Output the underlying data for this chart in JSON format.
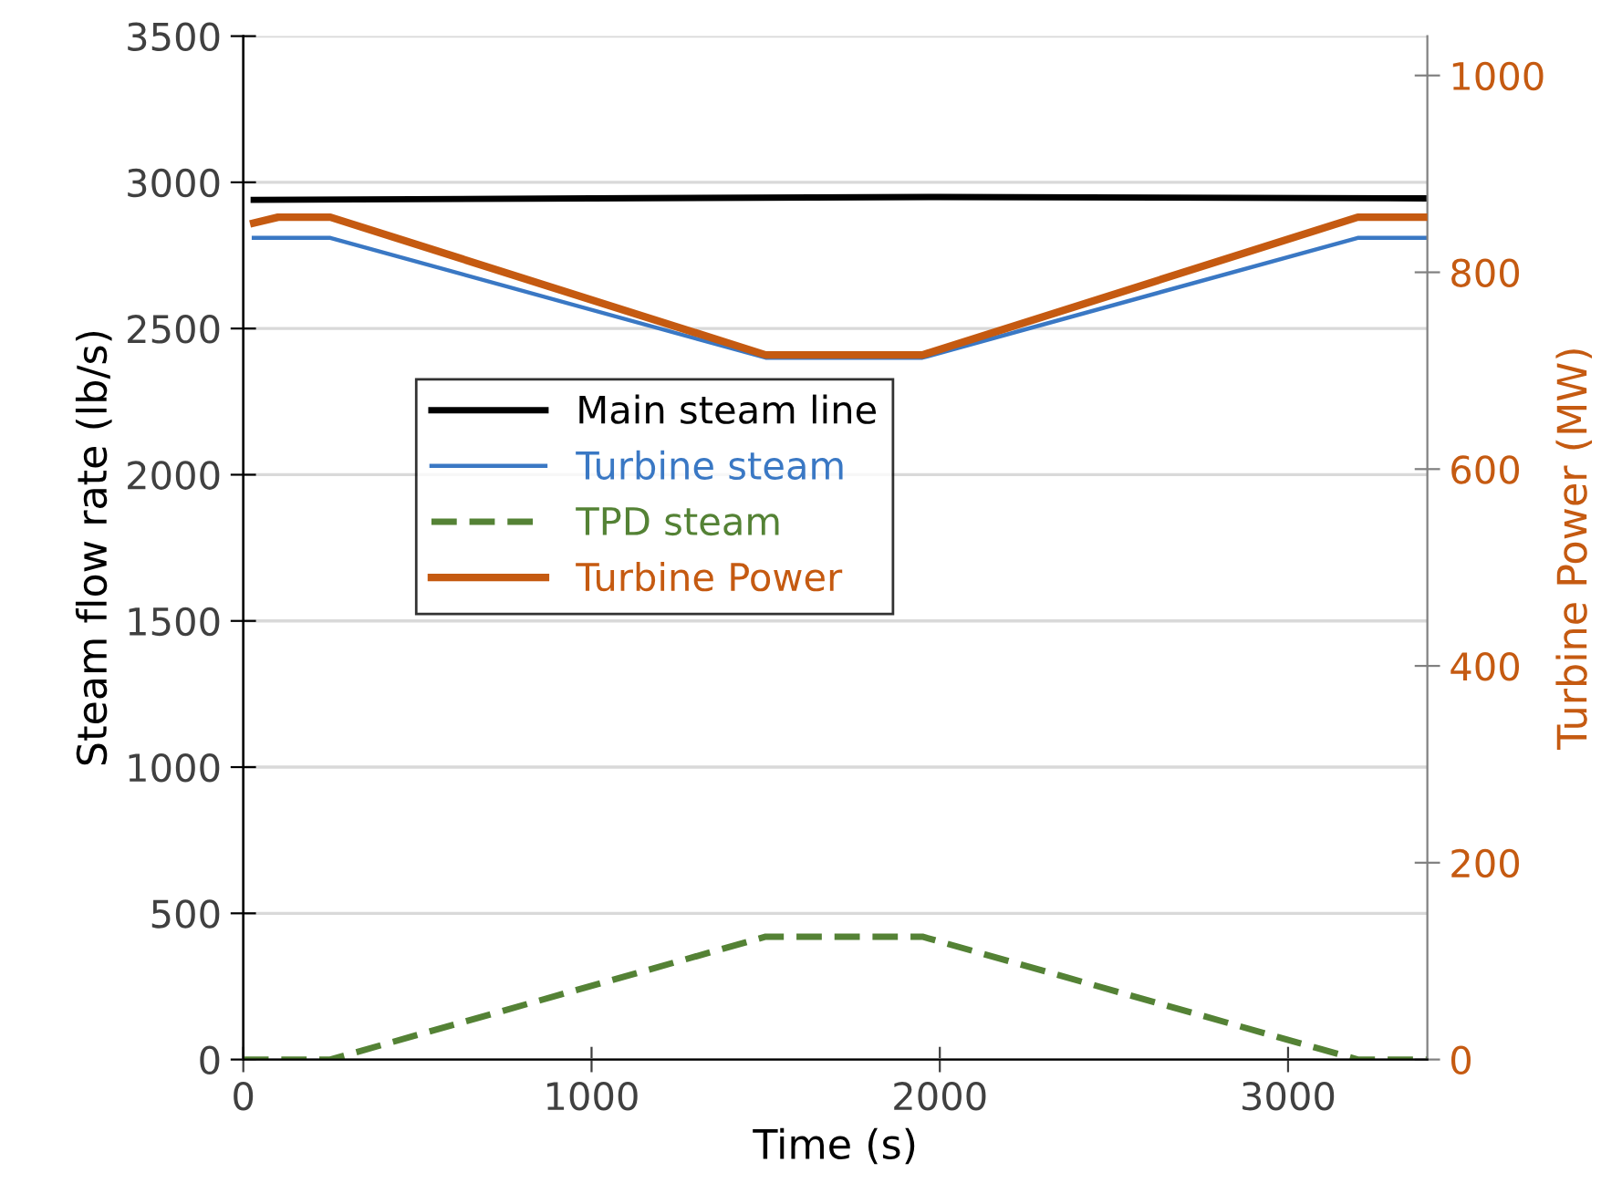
{
  "chart_data": {
    "type": "line",
    "xlabel": "Time (s)",
    "ylabel": "Steam flow rate (lb/s)",
    "y2label": "Turbine Power (MW)",
    "xlim": [
      0,
      3400
    ],
    "xticks": [
      0,
      1000,
      2000,
      3000
    ],
    "ylim": [
      0,
      3500
    ],
    "yticks": [
      0,
      500,
      1000,
      1500,
      2000,
      2500,
      3000,
      3500
    ],
    "y2lim": [
      0,
      1040
    ],
    "y2ticks": [
      0,
      200,
      400,
      600,
      800,
      1000
    ],
    "grid": "y",
    "legend": "left",
    "marker": "none",
    "series": [
      {
        "name": "Main steam line",
        "color": "#000000",
        "x": [
          30,
          1000,
          2000,
          3400
        ],
        "values": [
          2940,
          2945,
          2950,
          2945
        ],
        "line_style": "solid"
      },
      {
        "name": "Turbine steam",
        "color": "#3a78c4",
        "x": [
          30,
          250,
          1500,
          1950,
          3200,
          3400
        ],
        "values": [
          2810,
          2810,
          2400,
          2400,
          2810,
          2810
        ],
        "line_style": "solid"
      },
      {
        "name": "TPD steam",
        "color": "#548235",
        "x": [
          0,
          250,
          1500,
          1950,
          3200,
          3400
        ],
        "values": [
          0,
          0,
          420,
          420,
          0,
          0
        ],
        "line_style": "dashed"
      },
      {
        "name": "Turbine Power",
        "color": "#c55a11",
        "axis": "y2",
        "x": [
          30,
          100,
          250,
          1500,
          1950,
          3200,
          3400
        ],
        "values": [
          850,
          856,
          856,
          716,
          716,
          856,
          856
        ],
        "line_style": "solid"
      }
    ]
  }
}
